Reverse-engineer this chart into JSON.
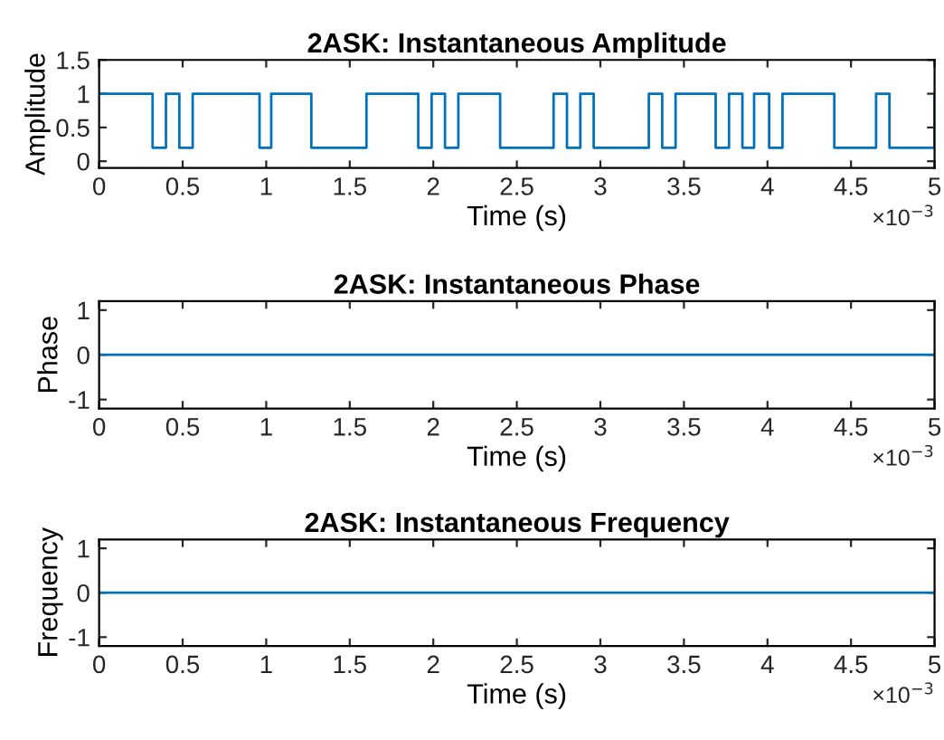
{
  "chart_data": [
    {
      "type": "step",
      "title": "2ASK: Instantaneous Amplitude",
      "xlabel": "Time (s)",
      "ylabel": "Amplitude",
      "annotations": [
        "×10$^{−3}$"
      ],
      "series": [
        {
          "color": "#0072bd",
          "x": [
            0,
            0.32,
            0.4,
            0.48,
            0.56,
            0.96,
            1.03,
            1.27,
            1.6,
            1.91,
            1.99,
            2.07,
            2.15,
            2.4,
            2.72,
            2.8,
            2.88,
            2.96,
            3.29,
            3.37,
            3.45,
            3.69,
            3.77,
            3.85,
            3.92,
            4.01,
            4.09,
            4.4,
            4.65,
            4.73,
            5.0
          ],
          "values": [
            1,
            0.2,
            1,
            0.2,
            1,
            0.2,
            1,
            0.2,
            1,
            0.2,
            1,
            0.2,
            1,
            0.2,
            1,
            0.2,
            1,
            0.2,
            1,
            0.2,
            1,
            0.2,
            1,
            0.2,
            1,
            0.2,
            1,
            0.2,
            1,
            0.2,
            1
          ]
        }
      ],
      "xlim": [
        0,
        5
      ],
      "xticks": [
        0,
        0.5,
        1,
        1.5,
        2,
        2.5,
        3,
        3.5,
        4,
        4.5,
        5
      ],
      "ylim": [
        -0.1,
        1.5
      ],
      "yticks": [
        0,
        0.5,
        1,
        1.5
      ],
      "grid": false,
      "legend": false
    },
    {
      "type": "line",
      "title": "2ASK: Instantaneous Phase",
      "xlabel": "Time (s)",
      "ylabel": "Phase",
      "annotations": [
        "×10$^{−3}$"
      ],
      "series": [
        {
          "color": "#0072bd",
          "x": [
            0,
            5
          ],
          "values": [
            0,
            0
          ]
        }
      ],
      "xlim": [
        0,
        5
      ],
      "xticks": [
        0,
        0.5,
        1,
        1.5,
        2,
        2.5,
        3,
        3.5,
        4,
        4.5,
        5
      ],
      "ylim": [
        -1.2,
        1.2
      ],
      "yticks": [
        -1,
        0,
        1
      ],
      "grid": false,
      "legend": false
    },
    {
      "type": "line",
      "title": "2ASK: Instantaneous Frequency",
      "xlabel": "Time (s)",
      "ylabel": "Frequency",
      "annotations": [
        "×10$^{−3}$"
      ],
      "series": [
        {
          "color": "#0072bd",
          "x": [
            0,
            5
          ],
          "values": [
            0,
            0
          ]
        }
      ],
      "xlim": [
        0,
        5
      ],
      "xticks": [
        0,
        0.5,
        1,
        1.5,
        2,
        2.5,
        3,
        3.5,
        4,
        4.5,
        5
      ],
      "ylim": [
        -1.2,
        1.2
      ],
      "yticks": [
        -1,
        0,
        1
      ],
      "grid": false,
      "legend": false
    }
  ]
}
